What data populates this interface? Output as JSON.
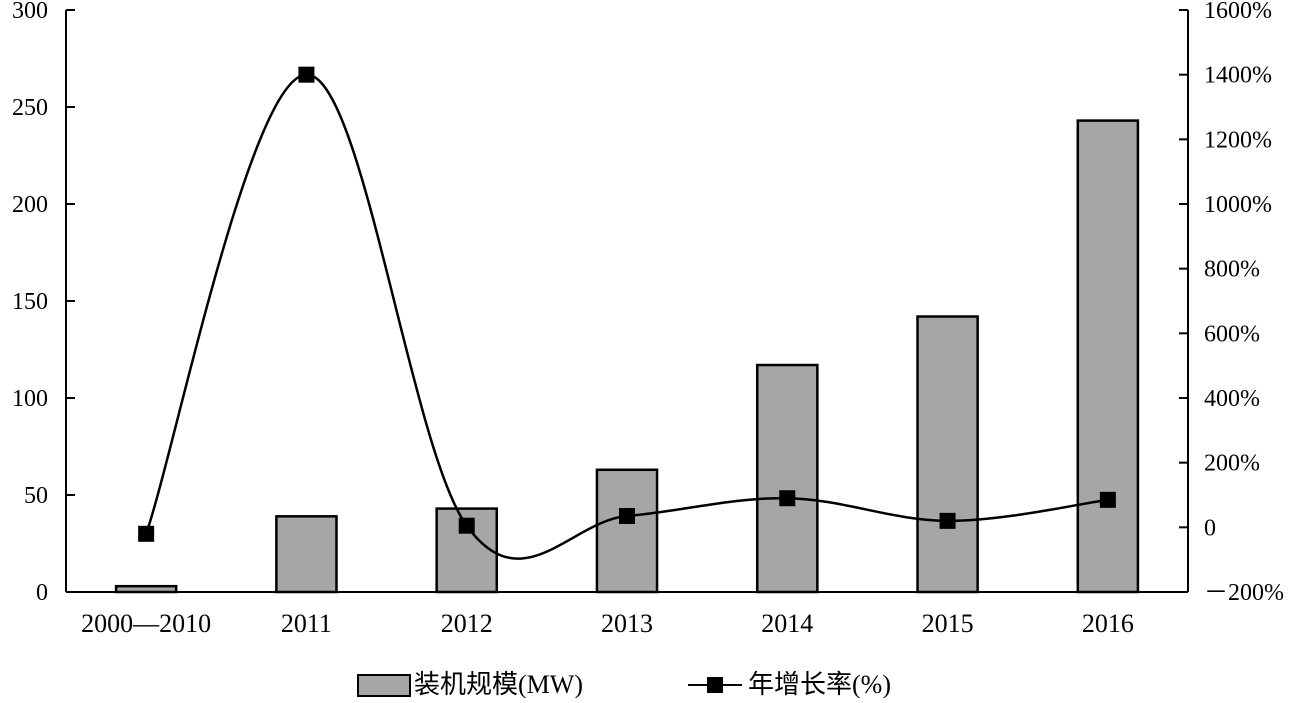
{
  "chart_data": {
    "type": "bar",
    "categories": [
      "2000—2010",
      "2011",
      "2012",
      "2013",
      "2014",
      "2015",
      "2016"
    ],
    "series": [
      {
        "name": "装机规模(MW)",
        "type": "bar",
        "axis": "left",
        "values": [
          3,
          39,
          43,
          63,
          117,
          142,
          243
        ],
        "color": "#a6a6a6"
      },
      {
        "name": "年增长率(%)",
        "type": "line",
        "axis": "right",
        "values": [
          -20,
          1400,
          5,
          35,
          90,
          20,
          85
        ],
        "color": "#000000"
      }
    ],
    "y_left": {
      "min": 0,
      "max": 300,
      "ticks": [
        "0",
        "50",
        "100",
        "150",
        "200",
        "250",
        "300"
      ]
    },
    "y_right": {
      "min": -200,
      "max": 1600,
      "ticks": [
        "－200%",
        "0",
        "200%",
        "400%",
        "600%",
        "800%",
        "1000%",
        "1200%",
        "1400%",
        "1600%"
      ]
    },
    "grid": false,
    "legend_position": "bottom"
  }
}
